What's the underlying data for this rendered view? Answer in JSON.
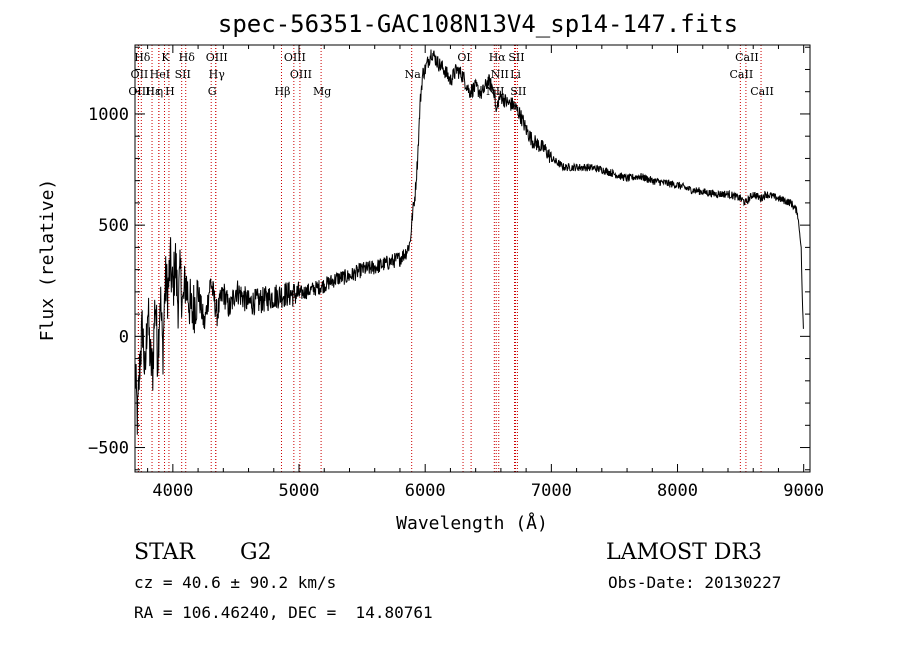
{
  "chart_data": {
    "type": "line",
    "title": "spec-56351-GAC108N13V4_sp14-147.fits",
    "xlabel": "Wavelength (Å)",
    "ylabel": "Flux (relative)",
    "xlim": [
      3700,
      9050
    ],
    "ylim": [
      -610,
      1310
    ],
    "xticks": [
      4000,
      5000,
      6000,
      7000,
      8000,
      9000
    ],
    "yticks": [
      -500,
      0,
      500,
      1000
    ],
    "xtick_labels": [
      "4000",
      "5000",
      "6000",
      "7000",
      "8000",
      "9000"
    ],
    "ytick_labels": [
      "−500",
      "0",
      "500",
      "1000"
    ],
    "line_color": "#000000",
    "marker_color": "#cc0000",
    "series": [
      {
        "name": "spectrum",
        "x": [
          3700,
          3720,
          3740,
          3760,
          3780,
          3800,
          3820,
          3840,
          3860,
          3880,
          3900,
          3920,
          3940,
          3960,
          3980,
          4000,
          4020,
          4040,
          4060,
          4080,
          4100,
          4150,
          4200,
          4250,
          4300,
          4350,
          4400,
          4450,
          4500,
          4600,
          4700,
          4800,
          4900,
          5000,
          5100,
          5200,
          5300,
          5400,
          5500,
          5600,
          5700,
          5800,
          5850,
          5880,
          5900,
          5920,
          5940,
          5960,
          5980,
          6000,
          6050,
          6100,
          6150,
          6200,
          6250,
          6300,
          6350,
          6400,
          6450,
          6500,
          6550,
          6563,
          6580,
          6600,
          6650,
          6700,
          6750,
          6800,
          6850,
          6900,
          6950,
          7000,
          7050,
          7100,
          7200,
          7300,
          7400,
          7500,
          7600,
          7700,
          7800,
          7900,
          8000,
          8100,
          8200,
          8300,
          8400,
          8500,
          8540,
          8600,
          8660,
          8700,
          8800,
          8900,
          8950,
          8980,
          8990,
          9000
        ],
        "y": [
          -150,
          -380,
          -100,
          50,
          -200,
          150,
          -100,
          -160,
          180,
          -100,
          200,
          -80,
          250,
          200,
          330,
          200,
          350,
          150,
          280,
          130,
          250,
          100,
          200,
          50,
          250,
          100,
          200,
          120,
          210,
          150,
          160,
          180,
          190,
          190,
          210,
          230,
          260,
          270,
          300,
          310,
          330,
          350,
          380,
          420,
          550,
          640,
          800,
          1050,
          1180,
          1200,
          1280,
          1230,
          1200,
          1150,
          1200,
          1170,
          1100,
          1120,
          1090,
          1150,
          1100,
          1000,
          1060,
          1080,
          1050,
          1040,
          1000,
          930,
          880,
          860,
          840,
          800,
          780,
          760,
          760,
          760,
          750,
          730,
          710,
          720,
          700,
          690,
          680,
          660,
          650,
          640,
          640,
          620,
          600,
          640,
          620,
          640,
          620,
          600,
          560,
          400,
          150,
          0
        ]
      }
    ],
    "lines": [
      {
        "name": "Hδ",
        "x": 3750,
        "tier": 0
      },
      {
        "name": "OII",
        "x": 3727,
        "tier": 1
      },
      {
        "name": "OIII",
        "x": 3727,
        "tier": 2
      },
      {
        "name": "Hε",
        "x": 3835,
        "tier": 2
      },
      {
        "name": "HeI",
        "x": 3889,
        "tier": 1
      },
      {
        "name": "η",
        "x": 3889,
        "tier": 2
      },
      {
        "name": "K",
        "x": 3934,
        "tier": 0
      },
      {
        "name": "H",
        "x": 3969,
        "tier": 2
      },
      {
        "name": "SII",
        "x": 4070,
        "tier": 1
      },
      {
        "name": "Hδ",
        "x": 4102,
        "tier": 0
      },
      {
        "name": "OIII",
        "x": 4340,
        "tier": 0
      },
      {
        "name": "Hγ",
        "x": 4340,
        "tier": 1
      },
      {
        "name": "G",
        "x": 4304,
        "tier": 2
      },
      {
        "name": "Hβ",
        "x": 4861,
        "tier": 2
      },
      {
        "name": "OIII",
        "x": 4959,
        "tier": 0
      },
      {
        "name": "OIII",
        "x": 5007,
        "tier": 1
      },
      {
        "name": "Mg",
        "x": 5175,
        "tier": 2
      },
      {
        "name": "Na",
        "x": 5893,
        "tier": 1
      },
      {
        "name": "OI",
        "x": 6300,
        "tier": 0
      },
      {
        "name": "OI",
        "x": 6364,
        "tier": null
      },
      {
        "name": "Hα",
        "x": 6563,
        "tier": 0
      },
      {
        "name": "NII",
        "x": 6583,
        "tier": 1
      },
      {
        "name": "NII",
        "x": 6548,
        "tier": 2
      },
      {
        "name": "SII",
        "x": 6716,
        "tier": 0
      },
      {
        "name": "Li",
        "x": 6708,
        "tier": 1
      },
      {
        "name": "SII",
        "x": 6731,
        "tier": 2
      },
      {
        "name": "CaII",
        "x": 8542,
        "tier": 0
      },
      {
        "name": "CaII",
        "x": 8498,
        "tier": 1
      },
      {
        "name": "CaII",
        "x": 8662,
        "tier": 2
      }
    ]
  },
  "info": {
    "class": "STAR",
    "subclass": "G2",
    "survey": "LAMOST DR3",
    "cz": "cz = 40.6 ± 90.2 km/s",
    "obs_date": "Obs-Date: 20130227",
    "coords": "RA = 106.46240, DEC =  14.80761"
  }
}
